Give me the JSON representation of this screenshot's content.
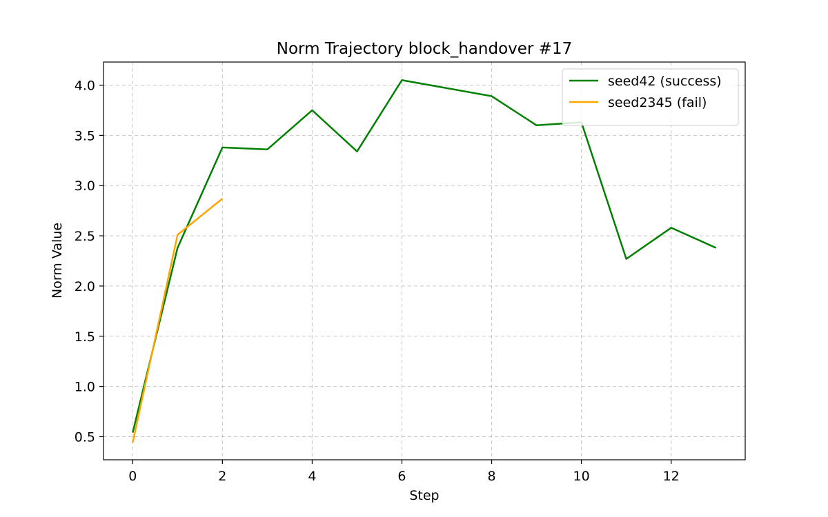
{
  "chart_data": {
    "type": "line",
    "title": "Norm Trajectory block_handover #17",
    "xlabel": "Step",
    "ylabel": "Norm Value",
    "xlim": [
      -0.65,
      13.65
    ],
    "ylim": [
      0.27,
      4.23
    ],
    "xticks": [
      0,
      2,
      4,
      6,
      8,
      10,
      12
    ],
    "xtick_labels": [
      "0",
      "2",
      "4",
      "6",
      "8",
      "10",
      "12"
    ],
    "yticks": [
      0.5,
      1.0,
      1.5,
      2.0,
      2.5,
      3.0,
      3.5,
      4.0
    ],
    "ytick_labels": [
      "0.5",
      "1.0",
      "1.5",
      "2.0",
      "2.5",
      "3.0",
      "3.5",
      "4.0"
    ],
    "grid": true,
    "legend_position": "top-right",
    "series": [
      {
        "name": "seed42 (success)",
        "color": "#008000",
        "x": [
          0,
          1,
          2,
          3,
          4,
          5,
          6,
          8,
          9,
          10,
          11,
          12,
          13
        ],
        "y": [
          0.54,
          2.38,
          3.38,
          3.36,
          3.75,
          3.34,
          4.05,
          3.89,
          3.6,
          3.63,
          2.27,
          2.58,
          2.38
        ]
      },
      {
        "name": "seed2345 (fail)",
        "color": "#ffa500",
        "x": [
          0,
          1,
          2
        ],
        "y": [
          0.44,
          2.51,
          2.87
        ]
      }
    ]
  }
}
